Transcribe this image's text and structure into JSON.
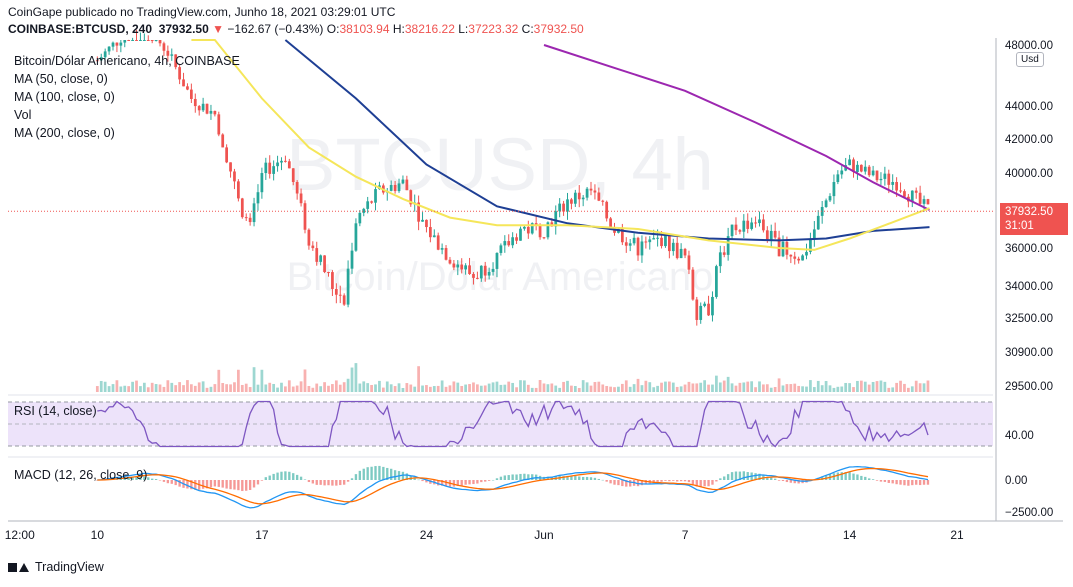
{
  "header": {
    "publisher_line": "CoinGape publicado no TradingView.com, Junho 18, 2021 03:29:01 UTC",
    "symbol": "COINBASE:BTCUSD, 240",
    "last": "37932.50",
    "change": "−162.67 (−0.43%)",
    "ohlc": {
      "O": "38103.94",
      "H": "38216.22",
      "L": "37223.32",
      "C": "37932.50"
    }
  },
  "legend": {
    "title": "Bitcoin/Dólar Americano, 4h, COINBASE",
    "ma50": "MA (50, close, 0)",
    "ma100": "MA (100, close, 0)",
    "vol": "Vol",
    "ma200": "MA (200, close, 0)",
    "rsi": "RSI (14, close)",
    "macd": "MACD (12, 26, close, 9)"
  },
  "watermark": {
    "symbol": "BTCUSD, 4h",
    "name": "Bitcoin/Dólar Americano"
  },
  "price_label": {
    "price": "37932.50",
    "countdown": "31:01"
  },
  "unit_button": "Usd",
  "footer": {
    "brand": "TradingView"
  },
  "colors": {
    "up": "#26a69a",
    "down": "#ef5350",
    "ma50": "#f5e65a",
    "ma100": "#1e3f94",
    "ma200": "#9c27b0",
    "rsi": "#7e57c2",
    "macd": "#2196f3",
    "signal": "#ff6d00"
  },
  "chart_data": {
    "type": "candlestick",
    "x_ticks": [
      "12:00",
      "10",
      "17",
      "24",
      "Jun",
      "7",
      "14",
      "21"
    ],
    "price_ticks": [
      "48000.00",
      "44000.00",
      "42000.00",
      "40000.00",
      "38000.00",
      "36000.00",
      "34000.00",
      "32500.00",
      "30900.00",
      "29500.00"
    ],
    "price_range": [
      29500,
      48000
    ],
    "rsi_ticks": [
      "40.00"
    ],
    "macd_ticks": [
      "0.00",
      "−2500.00"
    ],
    "last_price": 37932.5,
    "close_path": [
      {
        "d": 13,
        "p": 47000
      },
      {
        "d": 14,
        "p": 48500
      },
      {
        "d": 15,
        "p": 49500
      },
      {
        "d": 16,
        "p": 47500
      },
      {
        "d": 17,
        "p": 44500
      },
      {
        "d": 18,
        "p": 43500
      },
      {
        "d": 19,
        "p": 38500
      },
      {
        "d": 19.5,
        "p": 37000
      },
      {
        "d": 20,
        "p": 40000
      },
      {
        "d": 21,
        "p": 41000
      },
      {
        "d": 22,
        "p": 36500
      },
      {
        "d": 23,
        "p": 34000
      },
      {
        "d": 23.5,
        "p": 33500
      },
      {
        "d": 24,
        "p": 37500
      },
      {
        "d": 25,
        "p": 39000
      },
      {
        "d": 26,
        "p": 39500
      },
      {
        "d": 27,
        "p": 37000
      },
      {
        "d": 28,
        "p": 35500
      },
      {
        "d": 29,
        "p": 34500
      },
      {
        "d": 30,
        "p": 35500
      },
      {
        "d": 31,
        "p": 37000
      },
      {
        "d": 32,
        "p": 37000
      },
      {
        "d": 33,
        "p": 38500
      },
      {
        "d": 34,
        "p": 39000
      },
      {
        "d": 35,
        "p": 37000
      },
      {
        "d": 36,
        "p": 36000
      },
      {
        "d": 37,
        "p": 36500
      },
      {
        "d": 38,
        "p": 35500
      },
      {
        "d": 38.5,
        "p": 32500
      },
      {
        "d": 39,
        "p": 33000
      },
      {
        "d": 39.5,
        "p": 35500
      },
      {
        "d": 40,
        "p": 37000
      },
      {
        "d": 41,
        "p": 37500
      },
      {
        "d": 42,
        "p": 36000
      },
      {
        "d": 43,
        "p": 35500
      },
      {
        "d": 44,
        "p": 38500
      },
      {
        "d": 44.5,
        "p": 40000
      },
      {
        "d": 45,
        "p": 40500
      },
      {
        "d": 46,
        "p": 39800
      },
      {
        "d": 47,
        "p": 39500
      },
      {
        "d": 48,
        "p": 38300
      },
      {
        "d": 48.4,
        "p": 37932.5
      }
    ],
    "ma50": [
      {
        "d": 17,
        "p": 51000
      },
      {
        "d": 18,
        "p": 48500
      },
      {
        "d": 20,
        "p": 44500
      },
      {
        "d": 22,
        "p": 41500
      },
      {
        "d": 24,
        "p": 39800
      },
      {
        "d": 26,
        "p": 38600
      },
      {
        "d": 28,
        "p": 37600
      },
      {
        "d": 30,
        "p": 37200
      },
      {
        "d": 33,
        "p": 37200
      },
      {
        "d": 36,
        "p": 37000
      },
      {
        "d": 39,
        "p": 36400
      },
      {
        "d": 42,
        "p": 36000
      },
      {
        "d": 43.5,
        "p": 35900
      },
      {
        "d": 45,
        "p": 36500
      },
      {
        "d": 46.5,
        "p": 37200
      },
      {
        "d": 48.4,
        "p": 38100
      }
    ],
    "ma100": [
      {
        "d": 21,
        "p": 49000
      },
      {
        "d": 24,
        "p": 44500
      },
      {
        "d": 27,
        "p": 40500
      },
      {
        "d": 30,
        "p": 38200
      },
      {
        "d": 33,
        "p": 37300
      },
      {
        "d": 36,
        "p": 36800
      },
      {
        "d": 39,
        "p": 36500
      },
      {
        "d": 42,
        "p": 36400
      },
      {
        "d": 44,
        "p": 36500
      },
      {
        "d": 46,
        "p": 36900
      },
      {
        "d": 48.4,
        "p": 37100
      }
    ],
    "ma200": [
      {
        "d": 32,
        "p": 48000
      },
      {
        "d": 35,
        "p": 46500
      },
      {
        "d": 38,
        "p": 45000
      },
      {
        "d": 41,
        "p": 43000
      },
      {
        "d": 44,
        "p": 41000
      },
      {
        "d": 46,
        "p": 39500
      },
      {
        "d": 48.4,
        "p": 38000
      }
    ]
  }
}
